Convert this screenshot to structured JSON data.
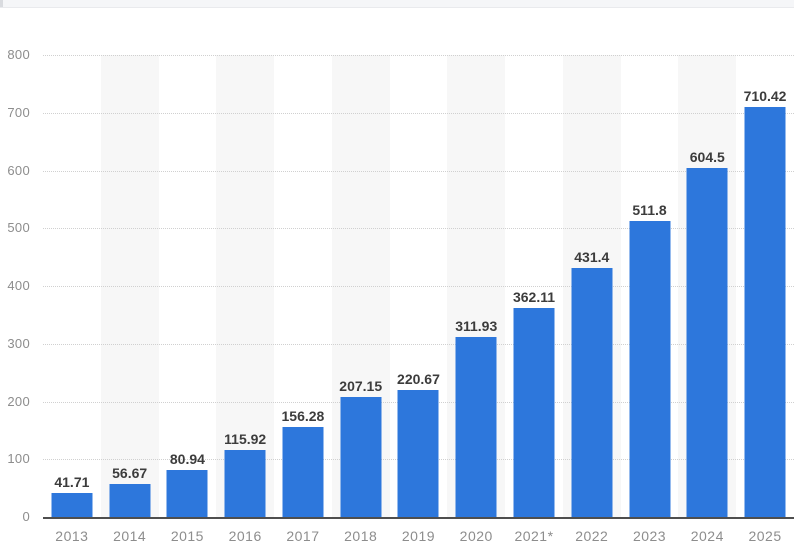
{
  "page": {
    "background_color": "#ffffff",
    "topbar_color": "#f5f6f8"
  },
  "chart_data": {
    "type": "bar",
    "title": "",
    "xlabel": "",
    "ylabel": "",
    "categories": [
      "2013",
      "2014",
      "2015",
      "2016",
      "2017",
      "2018",
      "2019",
      "2020",
      "2021*",
      "2022",
      "2023",
      "2024",
      "2025"
    ],
    "values": [
      41.71,
      56.67,
      80.94,
      115.92,
      156.28,
      207.15,
      220.67,
      311.93,
      362.11,
      431.4,
      511.8,
      604.5,
      710.42
    ],
    "labels": [
      "41.71",
      "56.67",
      "80.94",
      "115.92",
      "156.28",
      "207.15",
      "220.67",
      "311.93",
      "362.11",
      "431.4",
      "511.8",
      "604.5",
      "710.42"
    ],
    "ylim": [
      0,
      800
    ],
    "ytick_step": 100,
    "yticks": [
      "0",
      "100",
      "200",
      "300",
      "400",
      "500",
      "600",
      "700",
      "800"
    ],
    "grid": "horizontal-dotted",
    "plot_background": "alternating-vertical-bands",
    "legend": "none",
    "colors": {
      "bar": "#2d77dc",
      "band": "#f7f7f7",
      "gridline": "#d0d0d0",
      "baseline": "#4e4e4e",
      "value_label": "#3c3c3c",
      "axis_label": "#8d8d8d"
    }
  }
}
